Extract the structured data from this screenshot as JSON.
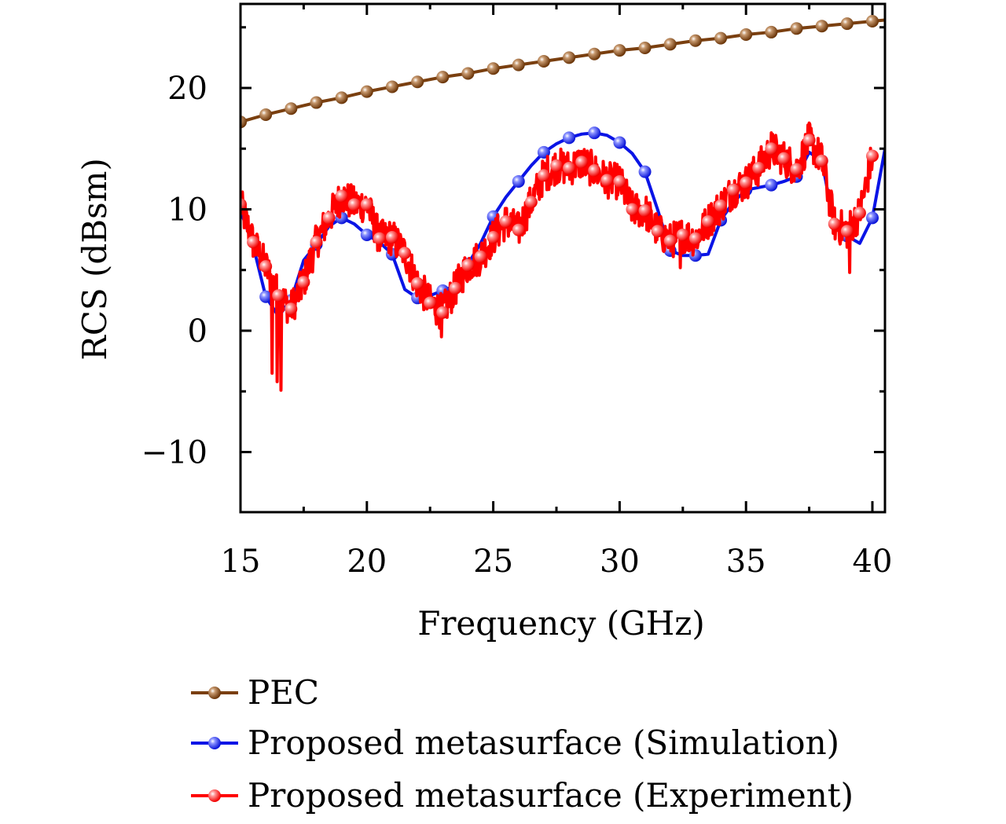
{
  "chart_data": {
    "type": "line",
    "title": "",
    "xlabel": "Frequency (GHz)",
    "ylabel": "RCS (dBsm)",
    "xlim": [
      15,
      40.5
    ],
    "ylim": [
      -15,
      27
    ],
    "xticks": [
      15,
      20,
      25,
      30,
      35,
      40
    ],
    "xtick_labels": [
      "15",
      "20",
      "25",
      "30",
      "35",
      "40"
    ],
    "xminor_ticks": [
      17.5,
      22.5,
      27.5,
      32.5,
      37.5
    ],
    "yticks": [
      -10,
      0,
      10,
      20
    ],
    "ytick_labels": [
      "−10",
      "0",
      "10",
      "20"
    ],
    "yminor_ticks": [
      -5,
      5,
      15,
      25
    ],
    "grid": false,
    "legend_position": "below",
    "series": [
      {
        "name": "PEC",
        "color": "#7a3f0f",
        "marker": "sphere",
        "x": [
          15,
          16,
          17,
          18,
          19,
          20,
          21,
          22,
          23,
          24,
          25,
          26,
          27,
          28,
          29,
          30,
          31,
          32,
          33,
          34,
          35,
          36,
          37,
          38,
          39,
          40,
          40.5
        ],
        "y": [
          17.2,
          17.8,
          18.3,
          18.8,
          19.2,
          19.7,
          20.1,
          20.5,
          20.9,
          21.2,
          21.6,
          21.9,
          22.2,
          22.5,
          22.8,
          23.1,
          23.3,
          23.6,
          23.9,
          24.1,
          24.4,
          24.6,
          24.9,
          25.1,
          25.3,
          25.5,
          25.6
        ],
        "marker_x": [
          15,
          16,
          17,
          18,
          19,
          20,
          21,
          22,
          23,
          24,
          25,
          26,
          27,
          28,
          29,
          30,
          31,
          32,
          33,
          34,
          35,
          36,
          37,
          38,
          39,
          40
        ]
      },
      {
        "name": "Proposed metasurface (Simulation)",
        "color": "#0a14e6",
        "marker": "sphere",
        "x": [
          15,
          15.5,
          16,
          16.5,
          17,
          17.5,
          18,
          18.5,
          19,
          19.5,
          20,
          20.5,
          21,
          21.5,
          22,
          22.5,
          23,
          23.5,
          24,
          24.5,
          25,
          25.5,
          26,
          26.5,
          27,
          27.5,
          28,
          28.5,
          29,
          29.5,
          30,
          30.5,
          31,
          31.5,
          32,
          32.5,
          33,
          33.5,
          34,
          34.5,
          35,
          35.5,
          36,
          36.5,
          37,
          37.5,
          38,
          38.5,
          39,
          39.5,
          40,
          40.5
        ],
        "y": [
          9.9,
          7.0,
          2.8,
          1.2,
          2.5,
          5.8,
          7.1,
          8.6,
          9.3,
          8.8,
          7.9,
          7.3,
          6.3,
          3.4,
          2.7,
          2.9,
          3.3,
          3.7,
          5.5,
          7.2,
          9.4,
          11.0,
          12.3,
          13.6,
          14.7,
          15.4,
          15.9,
          16.2,
          16.3,
          16.1,
          15.5,
          14.6,
          13.1,
          10.0,
          6.6,
          6.2,
          6.2,
          6.3,
          9.1,
          10.6,
          11.6,
          11.8,
          12.0,
          12.3,
          12.7,
          14.7,
          14.0,
          8.6,
          7.8,
          7.2,
          9.3,
          15.0
        ],
        "marker_x": [
          15,
          16,
          17,
          18,
          19,
          20,
          21,
          22,
          23,
          24,
          25,
          26,
          27,
          28,
          29,
          30,
          31,
          32,
          33,
          34,
          35,
          36,
          37,
          38,
          39,
          40
        ]
      },
      {
        "name": "Proposed metasurface (Experiment)",
        "color": "#ff0000",
        "marker": "sphere",
        "x": [
          15,
          15.5,
          16,
          16.5,
          17,
          17.5,
          18,
          18.5,
          19,
          19.5,
          20,
          20.5,
          21,
          21.5,
          22,
          22.5,
          23,
          23.5,
          24,
          24.5,
          25,
          25.5,
          26,
          26.5,
          27,
          27.5,
          28,
          28.5,
          29,
          29.5,
          30,
          30.5,
          31,
          31.5,
          32,
          32.5,
          33,
          33.5,
          34,
          34.5,
          35,
          35.5,
          36,
          36.5,
          37,
          37.5,
          38,
          38.5,
          39,
          39.5,
          40
        ],
        "y": [
          10.4,
          7.3,
          5.3,
          2.9,
          1.8,
          4.0,
          7.3,
          9.3,
          11.1,
          10.4,
          10.4,
          7.6,
          7.7,
          6.4,
          3.9,
          2.3,
          1.5,
          3.5,
          5.4,
          6.1,
          7.7,
          9.0,
          8.3,
          10.6,
          12.8,
          13.6,
          13.4,
          13.9,
          13.2,
          12.4,
          12.3,
          10.0,
          9.9,
          8.2,
          7.4,
          7.9,
          7.6,
          9.0,
          10.3,
          11.6,
          12.2,
          13.4,
          15.0,
          14.2,
          13.3,
          15.7,
          14.0,
          8.8,
          8.2,
          9.7,
          14.4
        ],
        "noise_amplitude_db": 1.5,
        "deep_nulls": [
          {
            "x": 16.25,
            "y": -3.5
          },
          {
            "x": 16.6,
            "y": -4.9
          },
          {
            "x": 16.45,
            "y": -4.2
          },
          {
            "x": 22.95,
            "y": -0.5
          },
          {
            "x": 32.4,
            "y": 5.2
          },
          {
            "x": 39.1,
            "y": 4.8
          }
        ],
        "marker_x": [
          15,
          15.5,
          16,
          16.5,
          17,
          17.5,
          18,
          18.5,
          19,
          19.5,
          20,
          20.5,
          21,
          21.5,
          22,
          22.5,
          23,
          23.5,
          24,
          24.5,
          25,
          25.5,
          26,
          26.5,
          27,
          27.5,
          28,
          28.5,
          29,
          29.5,
          30,
          30.5,
          31,
          31.5,
          32,
          32.5,
          33,
          33.5,
          34,
          34.5,
          35,
          35.5,
          36,
          36.5,
          37,
          37.5,
          38,
          38.5,
          39,
          39.5,
          40
        ]
      }
    ]
  }
}
